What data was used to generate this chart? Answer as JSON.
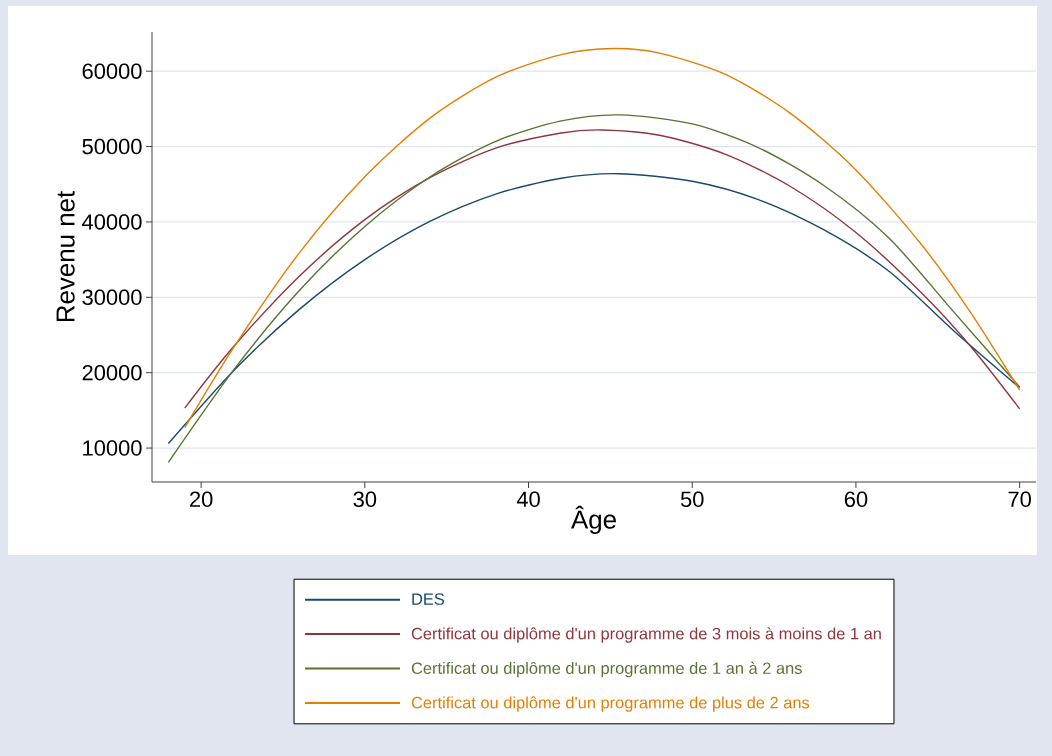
{
  "chart_data": {
    "type": "line",
    "xlabel": "Âge",
    "ylabel": "Revenu net",
    "xlim": [
      17,
      71
    ],
    "ylim": [
      5500,
      65200
    ],
    "xticks": [
      20,
      30,
      40,
      50,
      60,
      70
    ],
    "yticks": [
      10000,
      20000,
      30000,
      40000,
      50000,
      60000
    ],
    "grid": "y",
    "legend": "bottom",
    "marker": "none",
    "line_style": "solid",
    "series": [
      {
        "name": "DES",
        "color": "#1a476f",
        "x": [
          18,
          22,
          26,
          30,
          34,
          38,
          42,
          45.5,
          50,
          54,
          58,
          62,
          66,
          70
        ],
        "values": [
          10600,
          20300,
          28400,
          35000,
          40100,
          43700,
          45800,
          46400,
          45400,
          43000,
          39000,
          33500,
          25500,
          18000
        ]
      },
      {
        "name": "Certificat ou diplôme d'un programme de 3 mois à moins de 1 an",
        "color": "#90353b",
        "x": [
          19,
          22,
          26,
          30,
          34,
          38,
          42,
          44.5,
          48,
          52,
          56,
          60,
          64,
          67,
          70
        ],
        "values": [
          15300,
          23500,
          32800,
          40300,
          45900,
          49800,
          51800,
          52200,
          51500,
          49000,
          44700,
          38600,
          30600,
          23500,
          15200
        ]
      },
      {
        "name": "Certificat ou diplôme d'un programme de 1 an à 2 ans",
        "color": "#55752f",
        "x": [
          18,
          22,
          26,
          30,
          34,
          38,
          42,
          45.6,
          50,
          54,
          58,
          62,
          66,
          70
        ],
        "values": [
          8100,
          20400,
          30900,
          39400,
          46000,
          50700,
          53400,
          54200,
          53000,
          49900,
          44900,
          37900,
          28000,
          18100
        ]
      },
      {
        "name": "Certificat ou diplôme d'un programme de plus de 2 ans",
        "color": "#e37e00",
        "x": [
          19,
          22,
          26,
          30,
          34,
          38,
          42,
          45.2,
          48,
          52,
          56,
          60,
          64,
          67,
          70
        ],
        "values": [
          12700,
          23400,
          35900,
          46000,
          53800,
          59200,
          62200,
          63000,
          62400,
          59600,
          54400,
          46900,
          37000,
          28000,
          17700
        ]
      }
    ]
  }
}
